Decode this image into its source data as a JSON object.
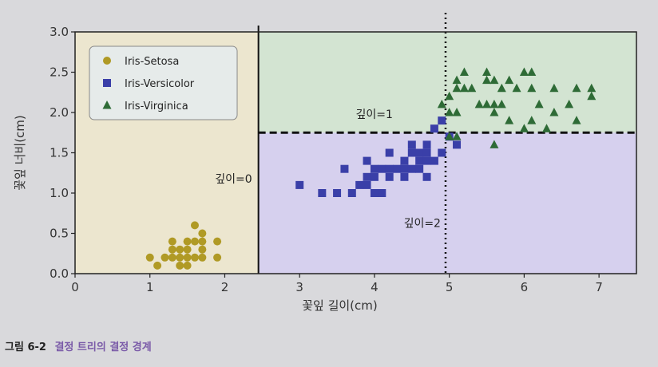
{
  "chart_data": {
    "type": "scatter",
    "xlabel": "꽃잎 길이(cm)",
    "ylabel": "꽃잎 너비(cm)",
    "xlim": [
      0,
      7.5
    ],
    "ylim": [
      0,
      3.0
    ],
    "xticks": [
      "0",
      "1",
      "2",
      "3",
      "4",
      "5",
      "6",
      "7"
    ],
    "yticks": [
      "0.0",
      "0.5",
      "1.0",
      "1.5",
      "2.0",
      "2.5",
      "3.0"
    ],
    "grid": false,
    "legend_position": "top-left",
    "regions": [
      {
        "class": "Iris-Setosa",
        "x_range": [
          0,
          2.45
        ],
        "y_range": [
          0,
          3.0
        ],
        "color": "#ece6cf"
      },
      {
        "class": "Iris-Versicolor",
        "x_range": [
          2.45,
          7.5
        ],
        "y_range": [
          0,
          1.75
        ],
        "color": "#d6d0ee"
      },
      {
        "class": "Iris-Virginica",
        "x_range": [
          2.45,
          7.5
        ],
        "y_range": [
          1.75,
          3.0
        ],
        "color": "#d3e4d2"
      }
    ],
    "boundaries": [
      {
        "style": "solid",
        "x": 2.45,
        "label": "깊이=0"
      },
      {
        "style": "dashed",
        "y": 1.75,
        "label": "깊이=1"
      },
      {
        "style": "dotted",
        "x": 4.95,
        "label": "깊이=2"
      }
    ],
    "series": [
      {
        "name": "Iris-Setosa",
        "marker": "circle",
        "color": "#b09a25",
        "points": [
          [
            1.0,
            0.2
          ],
          [
            1.1,
            0.1
          ],
          [
            1.2,
            0.2
          ],
          [
            1.3,
            0.2
          ],
          [
            1.3,
            0.3
          ],
          [
            1.3,
            0.4
          ],
          [
            1.4,
            0.1
          ],
          [
            1.4,
            0.2
          ],
          [
            1.4,
            0.3
          ],
          [
            1.5,
            0.1
          ],
          [
            1.5,
            0.2
          ],
          [
            1.5,
            0.3
          ],
          [
            1.5,
            0.4
          ],
          [
            1.6,
            0.2
          ],
          [
            1.6,
            0.4
          ],
          [
            1.6,
            0.6
          ],
          [
            1.7,
            0.2
          ],
          [
            1.7,
            0.3
          ],
          [
            1.7,
            0.4
          ],
          [
            1.7,
            0.5
          ],
          [
            1.9,
            0.2
          ],
          [
            1.9,
            0.4
          ]
        ]
      },
      {
        "name": "Iris-Versicolor",
        "marker": "square",
        "color": "#3a3fa8",
        "points": [
          [
            3.0,
            1.1
          ],
          [
            3.3,
            1.0
          ],
          [
            3.5,
            1.0
          ],
          [
            3.6,
            1.3
          ],
          [
            3.7,
            1.0
          ],
          [
            3.8,
            1.1
          ],
          [
            3.9,
            1.1
          ],
          [
            3.9,
            1.2
          ],
          [
            3.9,
            1.4
          ],
          [
            4.0,
            1.0
          ],
          [
            4.0,
            1.2
          ],
          [
            4.0,
            1.3
          ],
          [
            4.1,
            1.0
          ],
          [
            4.1,
            1.3
          ],
          [
            4.2,
            1.2
          ],
          [
            4.2,
            1.3
          ],
          [
            4.2,
            1.5
          ],
          [
            4.3,
            1.3
          ],
          [
            4.4,
            1.2
          ],
          [
            4.4,
            1.3
          ],
          [
            4.4,
            1.4
          ],
          [
            4.5,
            1.3
          ],
          [
            4.5,
            1.5
          ],
          [
            4.6,
            1.3
          ],
          [
            4.6,
            1.4
          ],
          [
            4.6,
            1.5
          ],
          [
            4.7,
            1.2
          ],
          [
            4.7,
            1.4
          ],
          [
            4.7,
            1.5
          ],
          [
            4.7,
            1.6
          ],
          [
            4.8,
            1.4
          ],
          [
            4.8,
            1.8
          ],
          [
            4.9,
            1.5
          ],
          [
            5.0,
            1.7
          ],
          [
            4.5,
            1.6
          ],
          [
            5.1,
            1.6
          ],
          [
            4.9,
            1.9
          ]
        ]
      },
      {
        "name": "Iris-Virginica",
        "marker": "triangle",
        "color": "#2e6b36",
        "points": [
          [
            4.9,
            2.1
          ],
          [
            5.0,
            1.7
          ],
          [
            5.0,
            2.0
          ],
          [
            5.0,
            2.2
          ],
          [
            5.1,
            1.7
          ],
          [
            5.1,
            2.0
          ],
          [
            5.1,
            2.3
          ],
          [
            5.1,
            2.4
          ],
          [
            5.2,
            2.3
          ],
          [
            5.3,
            2.3
          ],
          [
            5.4,
            2.1
          ],
          [
            5.5,
            2.1
          ],
          [
            5.5,
            2.5
          ],
          [
            5.6,
            1.6
          ],
          [
            5.6,
            2.1
          ],
          [
            5.6,
            2.4
          ],
          [
            5.7,
            2.1
          ],
          [
            5.7,
            2.3
          ],
          [
            5.8,
            2.4
          ],
          [
            5.9,
            2.3
          ],
          [
            6.0,
            1.8
          ],
          [
            6.0,
            2.5
          ],
          [
            6.1,
            1.9
          ],
          [
            6.1,
            2.3
          ],
          [
            6.1,
            2.5
          ],
          [
            6.3,
            1.8
          ],
          [
            6.4,
            2.3
          ],
          [
            6.6,
            2.1
          ],
          [
            6.7,
            1.9
          ],
          [
            6.7,
            2.3
          ],
          [
            6.9,
            2.2
          ],
          [
            6.9,
            2.3
          ],
          [
            5.6,
            2.0
          ],
          [
            5.8,
            1.9
          ],
          [
            6.2,
            2.1
          ],
          [
            5.2,
            2.5
          ],
          [
            5.5,
            2.4
          ],
          [
            6.4,
            2.0
          ]
        ]
      }
    ]
  },
  "caption": {
    "number": "그림 6-2",
    "title": "결정 트리의 결정 경계"
  }
}
